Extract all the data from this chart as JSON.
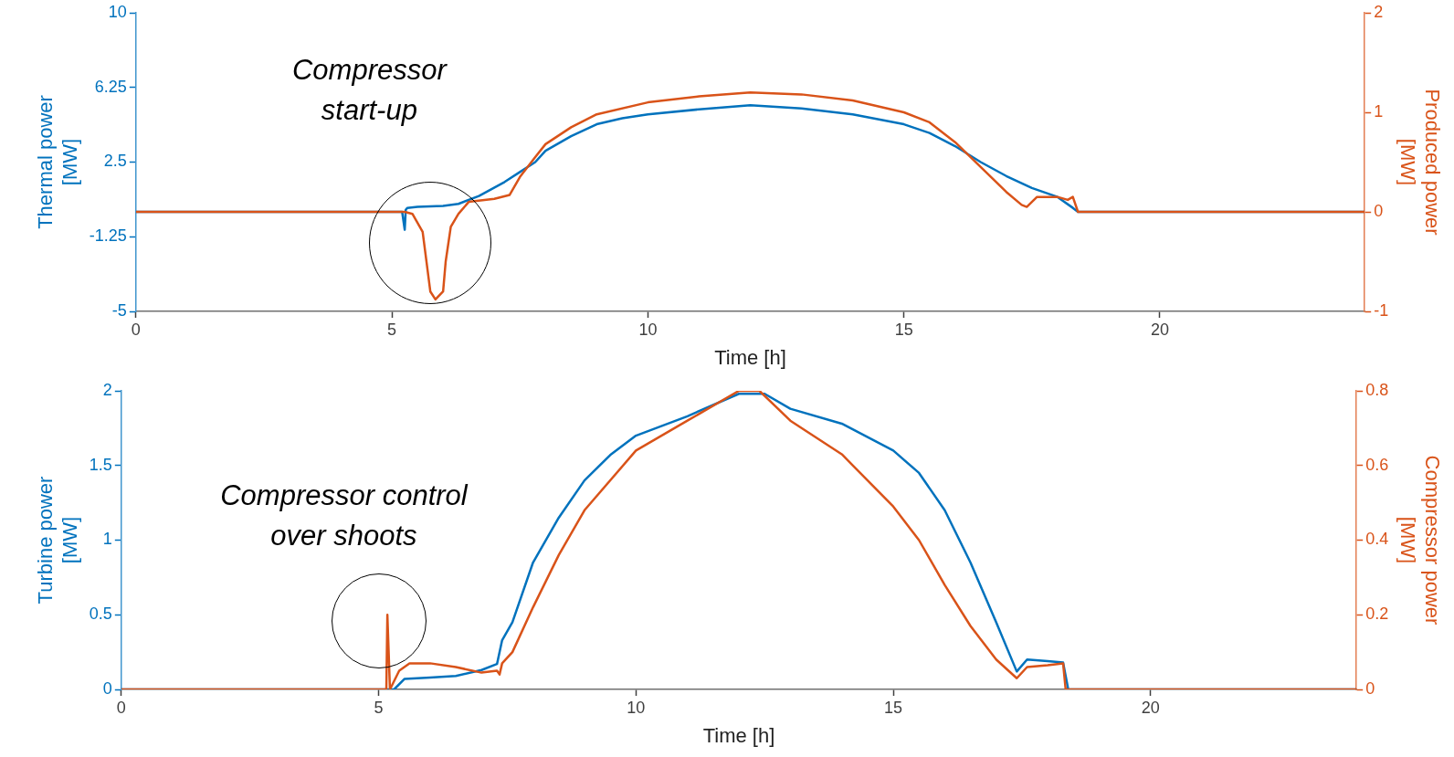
{
  "chart_data": [
    {
      "type": "line",
      "xlabel": "Time [h]",
      "ylabel": "Thermal power\n[MW]",
      "y2label": "Produced power\n[MW]",
      "xlim": [
        0,
        24
      ],
      "xticks": [
        0,
        5,
        10,
        15,
        20
      ],
      "ylim": [
        -5,
        10
      ],
      "yticks": [
        -5,
        -1.25,
        2.5,
        6.25,
        10
      ],
      "y2lim": [
        -1,
        2
      ],
      "y2ticks": [
        -1,
        0,
        1,
        2
      ],
      "grid": false,
      "legend": false,
      "marker": "none",
      "line_style": "solid",
      "annotations": [
        "Compressor\nstart-up"
      ],
      "series": [
        {
          "color": "#0072bd",
          "x": [
            0,
            5.2,
            5.25,
            5.27,
            5.3,
            5.5,
            6,
            6.3,
            6.7,
            7.2,
            7.5,
            7.8,
            8,
            8.5,
            9,
            9.5,
            10,
            11,
            12,
            13,
            14,
            15,
            15.5,
            16,
            16.5,
            17,
            17.5,
            18,
            18.3,
            18.4,
            24
          ],
          "values": [
            0,
            0,
            -0.9,
            0.1,
            0.2,
            0.25,
            0.3,
            0.4,
            0.8,
            1.5,
            2,
            2.5,
            3.07,
            3.8,
            4.4,
            4.7,
            4.9,
            5.15,
            5.35,
            5.2,
            4.9,
            4.4,
            3.96,
            3.3,
            2.5,
            1.8,
            1.2,
            0.75,
            0.2,
            0,
            0
          ]
        },
        {
          "color": "#d95319",
          "axis": "y2",
          "x": [
            0,
            5.25,
            5.4,
            5.6,
            5.75,
            5.85,
            6,
            6.05,
            6.15,
            6.3,
            6.5,
            7,
            7.3,
            7.5,
            7.8,
            8,
            8.5,
            9,
            10,
            11,
            12,
            13,
            14,
            15,
            15.5,
            16,
            16.5,
            17,
            17.3,
            17.4,
            17.6,
            18,
            18.2,
            18.3,
            18.4,
            24
          ],
          "values": [
            0,
            0,
            -0.02,
            -0.2,
            -0.8,
            -0.88,
            -0.8,
            -0.5,
            -0.15,
            -0.02,
            0.1,
            0.13,
            0.17,
            0.35,
            0.55,
            0.68,
            0.85,
            0.98,
            1.1,
            1.16,
            1.2,
            1.18,
            1.12,
            1,
            0.9,
            0.7,
            0.45,
            0.2,
            0.07,
            0.05,
            0.15,
            0.15,
            0.12,
            0.15,
            0,
            0
          ]
        }
      ]
    },
    {
      "type": "line",
      "xlabel": "Time [h]",
      "ylabel": "Turbine power\n[MW]",
      "y2label": "Compressor power\n[MW]",
      "xlim": [
        0,
        24
      ],
      "xticks": [
        0,
        5,
        10,
        15,
        20
      ],
      "ylim": [
        0,
        2
      ],
      "yticks": [
        0,
        0.5,
        1,
        1.5,
        2
      ],
      "y2lim": [
        0,
        0.8
      ],
      "y2ticks": [
        0,
        0.2,
        0.4,
        0.6,
        0.8
      ],
      "grid": false,
      "legend": false,
      "marker": "none",
      "line_style": "solid",
      "annotations": [
        "Compressor control\nover shoots"
      ],
      "series": [
        {
          "color": "#0072bd",
          "x": [
            0,
            5.3,
            5.5,
            6,
            6.5,
            7,
            7.3,
            7.4,
            7.6,
            8,
            8.5,
            9,
            9.5,
            10,
            11,
            12,
            12.5,
            13,
            14,
            15,
            15.5,
            16,
            16.5,
            17,
            17.4,
            17.6,
            18,
            18.3,
            18.4,
            24
          ],
          "values": [
            0,
            0,
            0.07,
            0.08,
            0.09,
            0.13,
            0.17,
            0.33,
            0.45,
            0.85,
            1.15,
            1.4,
            1.57,
            1.7,
            1.83,
            1.98,
            1.98,
            1.88,
            1.78,
            1.6,
            1.45,
            1.2,
            0.85,
            0.45,
            0.12,
            0.2,
            0.19,
            0.18,
            0,
            0
          ]
        },
        {
          "color": "#d95319",
          "axis": "y2",
          "x": [
            0,
            5.15,
            5.17,
            5.22,
            5.4,
            5.6,
            6,
            6.5,
            7,
            7.3,
            7.35,
            7.4,
            7.6,
            8,
            8.5,
            9,
            10,
            11,
            12,
            12.4,
            13,
            14,
            15,
            15.5,
            16,
            16.5,
            17,
            17.4,
            17.6,
            18,
            18.3,
            18.35,
            24
          ],
          "values": [
            0,
            0,
            0.2,
            0,
            0.05,
            0.07,
            0.07,
            0.06,
            0.045,
            0.05,
            0.04,
            0.07,
            0.1,
            0.22,
            0.36,
            0.48,
            0.64,
            0.72,
            0.8,
            0.8,
            0.72,
            0.63,
            0.49,
            0.4,
            0.28,
            0.17,
            0.08,
            0.03,
            0.06,
            0.065,
            0.07,
            0,
            0
          ]
        }
      ]
    }
  ]
}
